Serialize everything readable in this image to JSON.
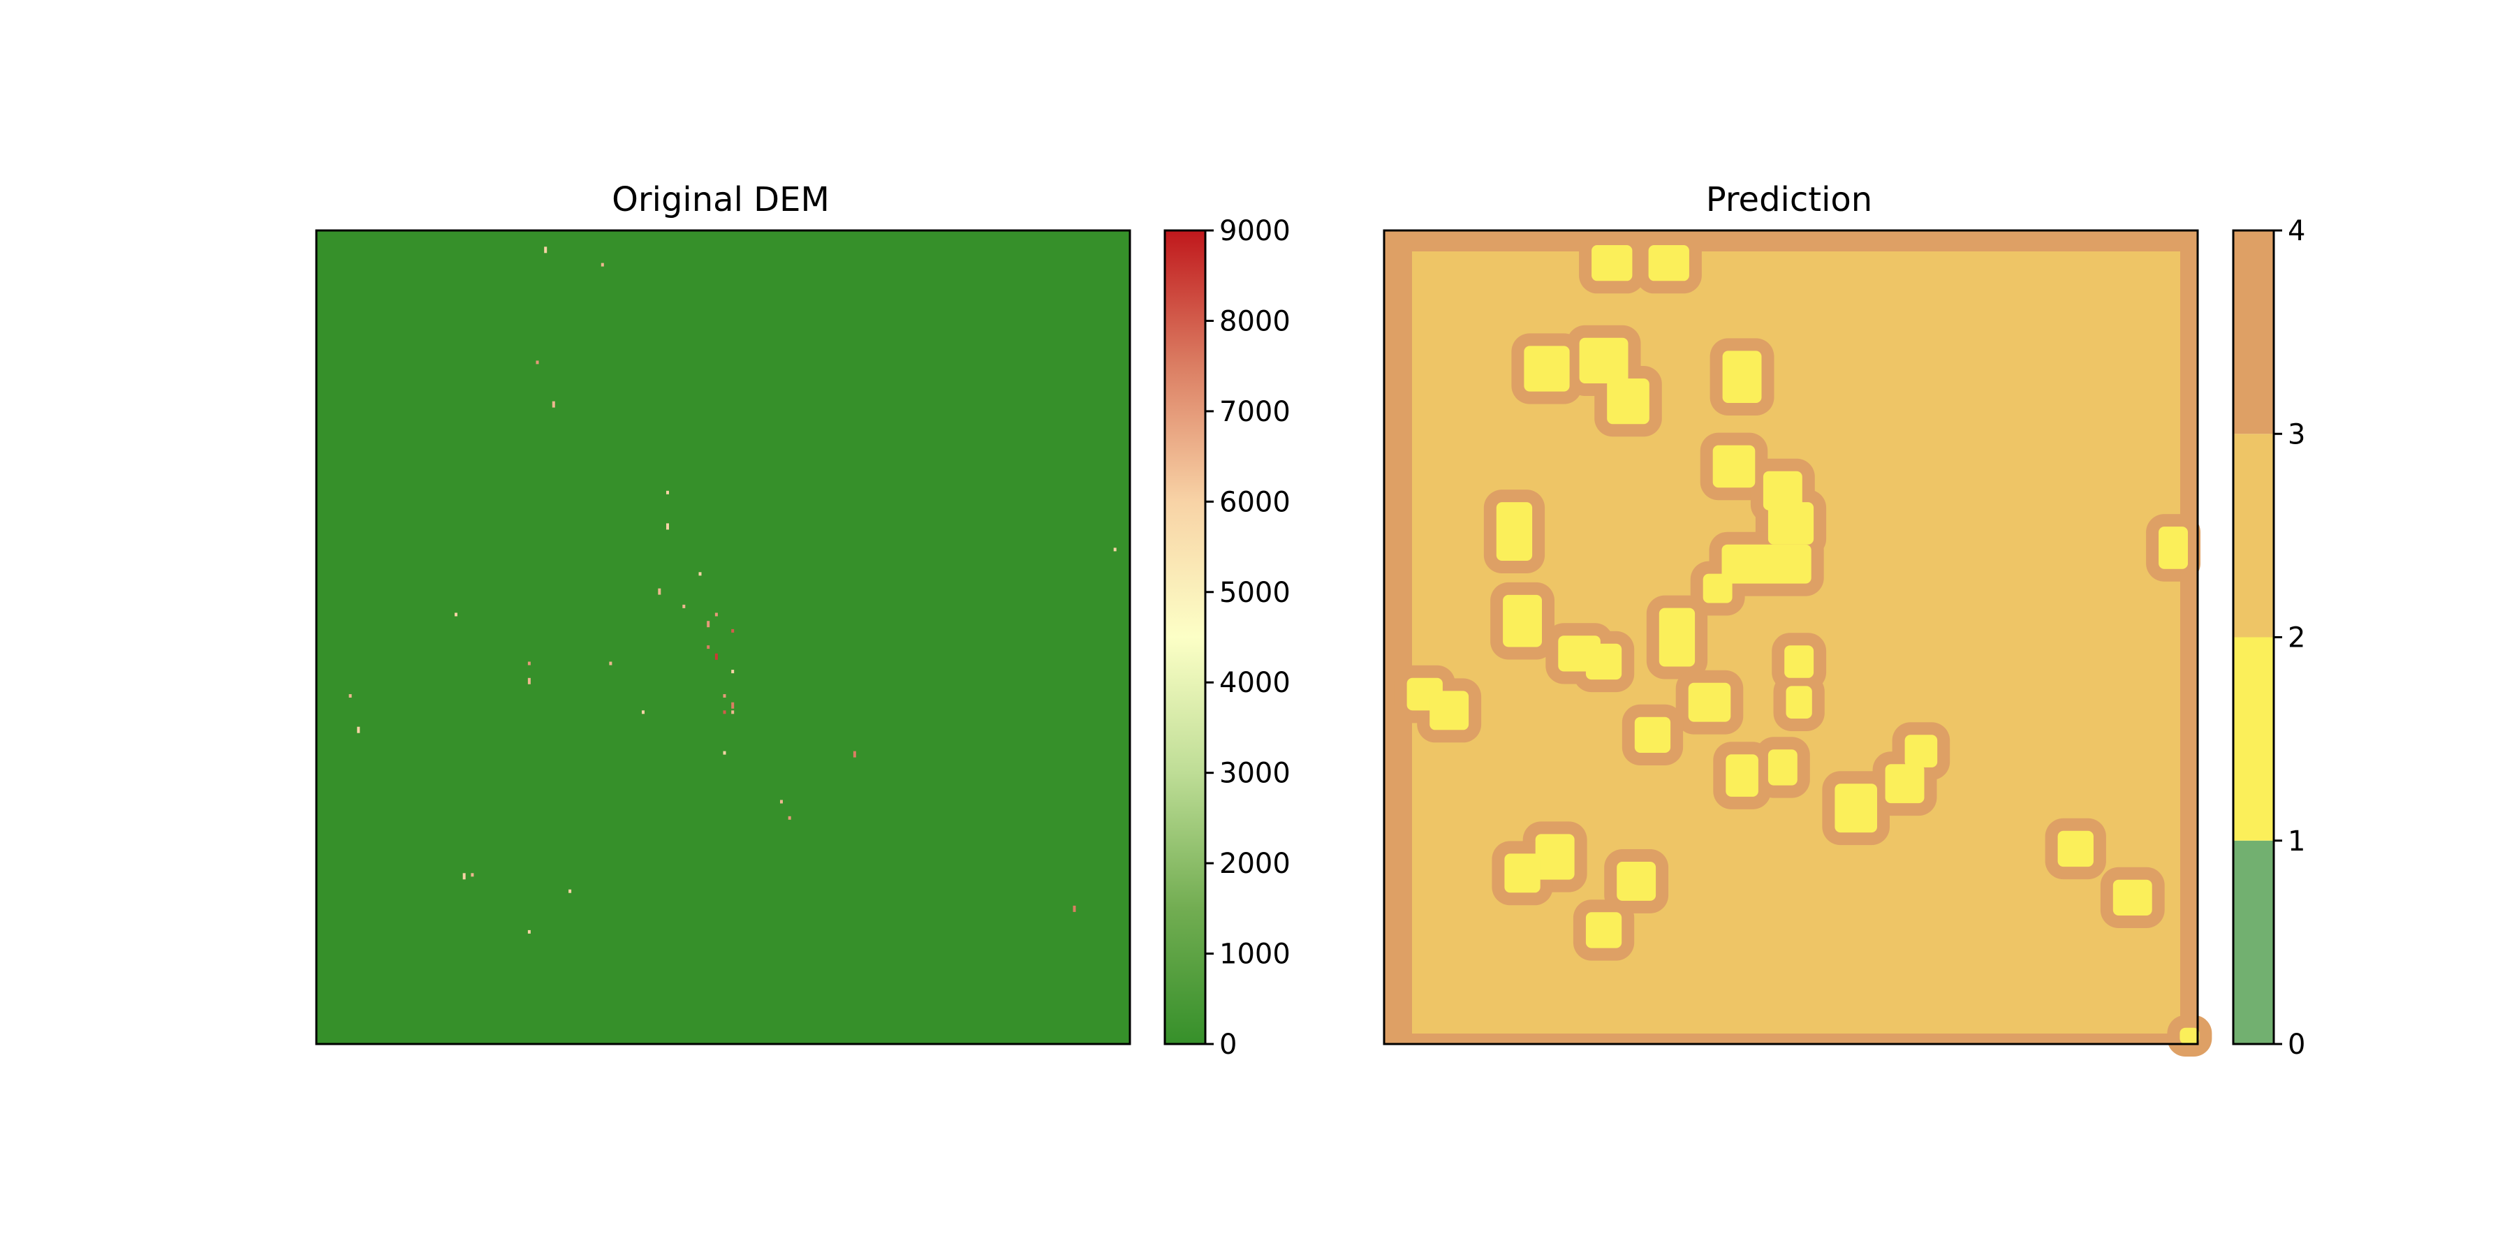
{
  "chart_data": [
    {
      "type": "heatmap",
      "title": "Original DEM",
      "background_value": 0,
      "colorbar": {
        "range": [
          0,
          9000
        ],
        "ticks": [
          "0",
          "1000",
          "2000",
          "3000",
          "4000",
          "5000",
          "6000",
          "7000",
          "8000",
          "9000"
        ],
        "colors": [
          "#36902a",
          "#72ad52",
          "#bedd96",
          "#fcffc6",
          "#f8d3a6",
          "#db7e63",
          "#c0181c"
        ]
      },
      "axes_visible": false,
      "scattered_values_note_free": true,
      "scattered_points": [
        [
          0.28,
          0.02,
          6000
        ],
        [
          0.35,
          0.04,
          6500
        ],
        [
          0.27,
          0.16,
          7000
        ],
        [
          0.29,
          0.21,
          6500
        ],
        [
          0.43,
          0.32,
          6000
        ],
        [
          0.49,
          0.47,
          7000
        ],
        [
          0.42,
          0.44,
          6500
        ],
        [
          0.47,
          0.42,
          6000
        ],
        [
          0.45,
          0.46,
          6500
        ],
        [
          0.48,
          0.48,
          7000
        ],
        [
          0.51,
          0.49,
          8000
        ],
        [
          0.48,
          0.51,
          7500
        ],
        [
          0.49,
          0.52,
          8500
        ],
        [
          0.51,
          0.54,
          6000
        ],
        [
          0.5,
          0.57,
          7000
        ],
        [
          0.51,
          0.58,
          7500
        ],
        [
          0.51,
          0.59,
          6500
        ],
        [
          0.26,
          0.53,
          7000
        ],
        [
          0.26,
          0.55,
          6500
        ],
        [
          0.17,
          0.47,
          6000
        ],
        [
          0.04,
          0.57,
          6500
        ],
        [
          0.05,
          0.61,
          6000
        ],
        [
          0.5,
          0.59,
          8000
        ],
        [
          0.4,
          0.59,
          6000
        ],
        [
          0.66,
          0.64,
          7500
        ],
        [
          0.57,
          0.7,
          6500
        ],
        [
          0.58,
          0.72,
          7000
        ],
        [
          0.18,
          0.79,
          6000
        ],
        [
          0.19,
          0.79,
          6500
        ],
        [
          0.31,
          0.81,
          6000
        ],
        [
          0.93,
          0.83,
          7500
        ],
        [
          0.26,
          0.86,
          6000
        ],
        [
          0.98,
          0.39,
          6000
        ],
        [
          0.43,
          0.36,
          6000
        ],
        [
          0.36,
          0.53,
          6500
        ],
        [
          0.5,
          0.64,
          6000
        ]
      ]
    },
    {
      "type": "heatmap",
      "title": "Prediction",
      "background_value": 3,
      "colorbar": {
        "range": [
          0,
          4
        ],
        "ticks": [
          "0",
          "1",
          "2",
          "3",
          "4"
        ],
        "colors": [
          "#72b070",
          "#fbef5a",
          "#eec566",
          "#dea065"
        ]
      },
      "axes_visible": false,
      "border_value": 4,
      "blobs": [
        [
          0.28,
          0.04,
          0.025,
          0.022
        ],
        [
          0.35,
          0.04,
          0.025,
          0.022
        ],
        [
          0.2,
          0.17,
          0.028,
          0.028
        ],
        [
          0.27,
          0.16,
          0.03,
          0.028
        ],
        [
          0.3,
          0.21,
          0.026,
          0.028
        ],
        [
          0.44,
          0.18,
          0.024,
          0.032
        ],
        [
          0.43,
          0.29,
          0.026,
          0.026
        ],
        [
          0.49,
          0.32,
          0.024,
          0.024
        ],
        [
          0.5,
          0.36,
          0.028,
          0.026
        ],
        [
          0.47,
          0.41,
          0.055,
          0.024
        ],
        [
          0.41,
          0.44,
          0.018,
          0.018
        ],
        [
          0.16,
          0.37,
          0.022,
          0.036
        ],
        [
          0.17,
          0.48,
          0.024,
          0.032
        ],
        [
          0.24,
          0.52,
          0.026,
          0.022
        ],
        [
          0.27,
          0.53,
          0.022,
          0.022
        ],
        [
          0.36,
          0.5,
          0.022,
          0.036
        ],
        [
          0.51,
          0.53,
          0.018,
          0.02
        ],
        [
          0.51,
          0.58,
          0.016,
          0.02
        ],
        [
          0.4,
          0.58,
          0.026,
          0.024
        ],
        [
          0.33,
          0.62,
          0.022,
          0.022
        ],
        [
          0.05,
          0.57,
          0.022,
          0.02
        ],
        [
          0.08,
          0.59,
          0.024,
          0.024
        ],
        [
          0.44,
          0.67,
          0.02,
          0.026
        ],
        [
          0.49,
          0.66,
          0.018,
          0.022
        ],
        [
          0.58,
          0.71,
          0.026,
          0.03
        ],
        [
          0.64,
          0.68,
          0.024,
          0.024
        ],
        [
          0.66,
          0.64,
          0.02,
          0.02
        ],
        [
          0.21,
          0.77,
          0.024,
          0.028
        ],
        [
          0.17,
          0.79,
          0.022,
          0.024
        ],
        [
          0.31,
          0.8,
          0.024,
          0.024
        ],
        [
          0.27,
          0.86,
          0.022,
          0.022
        ],
        [
          0.85,
          0.76,
          0.022,
          0.022
        ],
        [
          0.92,
          0.82,
          0.024,
          0.022
        ],
        [
          0.97,
          0.39,
          0.018,
          0.026
        ],
        [
          0.99,
          0.99,
          0.012,
          0.01
        ]
      ]
    }
  ]
}
